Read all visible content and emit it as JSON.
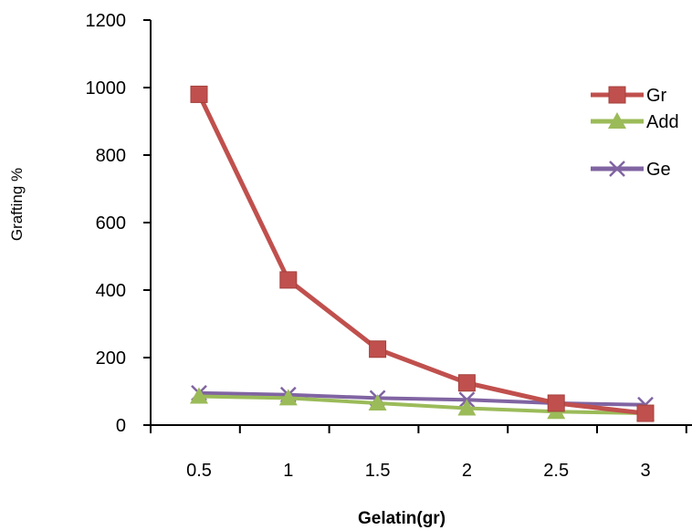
{
  "chart_data": {
    "type": "line",
    "title": "",
    "xlabel": "Gelatin(gr)",
    "ylabel": "Grafting %",
    "x": [
      "0.5",
      "1",
      "1.5",
      "2",
      "2.5",
      "3"
    ],
    "yticks": [
      "0",
      "200",
      "400",
      "600",
      "800",
      "1000",
      "1200"
    ],
    "ylim": [
      0,
      1200
    ],
    "legend_position": "top-right",
    "grid": false,
    "series": [
      {
        "name": "Gr",
        "values": [
          980,
          430,
          225,
          125,
          65,
          35
        ],
        "color": "#c0504d",
        "marker": "square"
      },
      {
        "name": "Add",
        "values": [
          85,
          80,
          65,
          50,
          40,
          35
        ],
        "color": "#9bbb59",
        "marker": "triangle"
      },
      {
        "name": "Ge",
        "values": [
          95,
          90,
          80,
          75,
          65,
          60
        ],
        "color": "#8064a2",
        "marker": "x"
      }
    ]
  }
}
